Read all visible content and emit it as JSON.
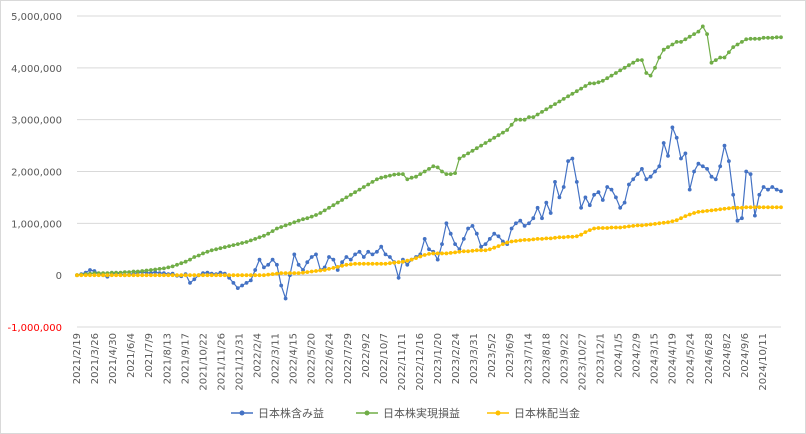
{
  "chart_data": {
    "type": "line",
    "title": "",
    "xlabel": "",
    "ylabel": "",
    "ylim": [
      -1000000,
      5000000
    ],
    "grid": "horizontal",
    "legend_position": "bottom",
    "y_ticks": [
      {
        "value": 5000000,
        "label": "5,000,000"
      },
      {
        "value": 4000000,
        "label": "4,000,000"
      },
      {
        "value": 3000000,
        "label": "3,000,000"
      },
      {
        "value": 2000000,
        "label": "2,000,000"
      },
      {
        "value": 1000000,
        "label": "1,000,000"
      },
      {
        "value": 0,
        "label": "0"
      },
      {
        "value": -1000000,
        "label": "-1,000,000"
      }
    ],
    "x_tick_labels": [
      "2021/2/19",
      "2021/3/26",
      "2021/4/30",
      "2021/6/4",
      "2021/7/9",
      "2021/8/13",
      "2021/9/17",
      "2021/10/22",
      "2021/11/26",
      "2021/12/31",
      "2022/2/4",
      "2022/3/11",
      "2022/4/15",
      "2022/5/20",
      "2022/6/24",
      "2022/7/29",
      "2022/9/2",
      "2022/10/7",
      "2022/11/11",
      "2022/12/16",
      "2023/1/20",
      "2023/2/24",
      "2023/3/31",
      "2023/5/2",
      "2023/6/9",
      "2023/7/14",
      "2023/8/18",
      "2023/9/22",
      "2023/10/27",
      "2023/12/1",
      "2024/1/5",
      "2024/2/9",
      "2024/3/15",
      "2024/4/19",
      "2024/5/24",
      "2024/6/28",
      "2024/8/2",
      "2024/9/6",
      "2024/10/11"
    ],
    "series": [
      {
        "name": "日本株含み益",
        "color": "#4472c4",
        "values": [
          0,
          20000,
          50000,
          100000,
          80000,
          30000,
          0,
          -30000,
          20000,
          40000,
          30000,
          0,
          10000,
          30000,
          50000,
          60000,
          50000,
          40000,
          60000,
          40000,
          40000,
          20000,
          30000,
          -10000,
          -20000,
          20000,
          -150000,
          -80000,
          0,
          40000,
          50000,
          30000,
          20000,
          50000,
          30000,
          -50000,
          -150000,
          -250000,
          -200000,
          -150000,
          -100000,
          100000,
          300000,
          150000,
          200000,
          300000,
          200000,
          -200000,
          -450000,
          0,
          400000,
          200000,
          100000,
          250000,
          350000,
          400000,
          100000,
          150000,
          350000,
          300000,
          100000,
          250000,
          350000,
          300000,
          400000,
          450000,
          350000,
          450000,
          400000,
          450000,
          550000,
          400000,
          350000,
          250000,
          -50000,
          300000,
          200000,
          300000,
          350000,
          400000,
          700000,
          500000,
          450000,
          300000,
          600000,
          1000000,
          800000,
          600000,
          500000,
          700000,
          900000,
          950000,
          800000,
          550000,
          600000,
          700000,
          800000,
          750000,
          650000,
          600000,
          900000,
          1000000,
          1050000,
          950000,
          1000000,
          1100000,
          1300000,
          1100000,
          1400000,
          1200000,
          1800000,
          1500000,
          1700000,
          2200000,
          2250000,
          1800000,
          1300000,
          1500000,
          1350000,
          1550000,
          1600000,
          1450000,
          1700000,
          1650000,
          1500000,
          1300000,
          1400000,
          1750000,
          1850000,
          1950000,
          2050000,
          1850000,
          1900000,
          2000000,
          2100000,
          2550000,
          2300000,
          2850000,
          2650000,
          2250000,
          2350000,
          1650000,
          2000000,
          2150000,
          2100000,
          2050000,
          1900000,
          1850000,
          2100000,
          2500000,
          2200000,
          1550000,
          1050000,
          1100000,
          2000000,
          1950000,
          1150000,
          1550000,
          1700000,
          1650000,
          1700000,
          1650000,
          1620000
        ]
      },
      {
        "name": "日本株実現損益",
        "color": "#70ad47",
        "values": [
          0,
          10000,
          20000,
          30000,
          40000,
          40000,
          40000,
          40000,
          50000,
          50000,
          50000,
          60000,
          60000,
          70000,
          70000,
          80000,
          90000,
          100000,
          110000,
          120000,
          130000,
          150000,
          170000,
          200000,
          230000,
          260000,
          300000,
          350000,
          380000,
          420000,
          450000,
          480000,
          500000,
          520000,
          540000,
          560000,
          580000,
          600000,
          620000,
          640000,
          670000,
          700000,
          730000,
          760000,
          800000,
          850000,
          900000,
          930000,
          960000,
          990000,
          1020000,
          1050000,
          1080000,
          1100000,
          1130000,
          1160000,
          1200000,
          1250000,
          1300000,
          1350000,
          1400000,
          1450000,
          1500000,
          1550000,
          1600000,
          1650000,
          1700000,
          1750000,
          1800000,
          1850000,
          1880000,
          1900000,
          1920000,
          1940000,
          1950000,
          1950000,
          1850000,
          1880000,
          1900000,
          1950000,
          2000000,
          2050000,
          2100000,
          2080000,
          2000000,
          1950000,
          1950000,
          1970000,
          2250000,
          2300000,
          2350000,
          2400000,
          2450000,
          2500000,
          2550000,
          2600000,
          2650000,
          2700000,
          2750000,
          2800000,
          2900000,
          3000000,
          3000000,
          3000000,
          3050000,
          3050000,
          3100000,
          3150000,
          3200000,
          3250000,
          3300000,
          3350000,
          3400000,
          3450000,
          3500000,
          3550000,
          3600000,
          3650000,
          3700000,
          3700000,
          3720000,
          3750000,
          3800000,
          3850000,
          3900000,
          3950000,
          4000000,
          4050000,
          4100000,
          4150000,
          4150000,
          3900000,
          3850000,
          4000000,
          4200000,
          4350000,
          4400000,
          4450000,
          4500000,
          4500000,
          4550000,
          4600000,
          4650000,
          4700000,
          4800000,
          4650000,
          4100000,
          4150000,
          4200000,
          4200000,
          4300000,
          4400000,
          4450000,
          4500000,
          4550000,
          4560000,
          4560000,
          4560000,
          4580000,
          4580000,
          4580000,
          4590000,
          4590000
        ]
      },
      {
        "name": "日本株配当金",
        "color": "#ffc000",
        "values": [
          0,
          0,
          0,
          0,
          0,
          0,
          0,
          0,
          0,
          0,
          0,
          0,
          0,
          0,
          0,
          0,
          0,
          0,
          0,
          0,
          0,
          0,
          0,
          0,
          0,
          0,
          0,
          0,
          0,
          0,
          0,
          0,
          0,
          0,
          0,
          0,
          0,
          0,
          0,
          0,
          0,
          0,
          0,
          0,
          10000,
          20000,
          30000,
          40000,
          40000,
          40000,
          40000,
          40000,
          50000,
          60000,
          70000,
          80000,
          90000,
          100000,
          120000,
          140000,
          160000,
          180000,
          200000,
          210000,
          220000,
          220000,
          220000,
          220000,
          220000,
          220000,
          220000,
          220000,
          230000,
          240000,
          250000,
          260000,
          280000,
          300000,
          330000,
          360000,
          390000,
          410000,
          420000,
          420000,
          420000,
          420000,
          430000,
          440000,
          450000,
          460000,
          460000,
          470000,
          480000,
          480000,
          480000,
          500000,
          530000,
          560000,
          600000,
          630000,
          650000,
          660000,
          670000,
          680000,
          680000,
          690000,
          700000,
          700000,
          710000,
          710000,
          720000,
          730000,
          730000,
          740000,
          740000,
          750000,
          780000,
          830000,
          870000,
          900000,
          910000,
          910000,
          910000,
          920000,
          920000,
          920000,
          930000,
          940000,
          950000,
          960000,
          960000,
          970000,
          980000,
          990000,
          1000000,
          1010000,
          1020000,
          1040000,
          1060000,
          1100000,
          1140000,
          1170000,
          1200000,
          1220000,
          1230000,
          1240000,
          1250000,
          1260000,
          1270000,
          1280000,
          1290000,
          1300000,
          1300000,
          1300000,
          1310000,
          1310000,
          1310000,
          1310000,
          1310000,
          1310000,
          1310000,
          1310000,
          1310000
        ]
      }
    ]
  }
}
